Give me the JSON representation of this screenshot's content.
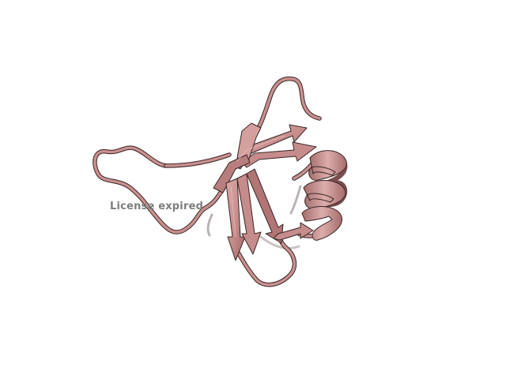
{
  "watermark": {
    "text": "License expired"
  },
  "colors": {
    "background": "#ffffff",
    "ribbon_fill": "#c9908f",
    "ribbon_shade": "#9c6564",
    "ribbon_highlight": "#e2b7b5",
    "ribbon_outline": "#3a2626",
    "back_coil": "#b9b3b3"
  }
}
